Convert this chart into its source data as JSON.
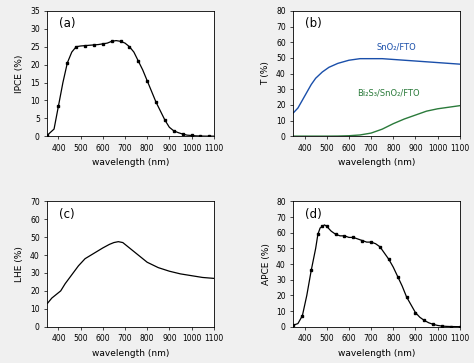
{
  "fig_width": 4.74,
  "fig_height": 3.63,
  "dpi": 100,
  "background_color": "#f0f0f0",
  "panel_a": {
    "label": "(a)",
    "xlabel": "wavelength (nm)",
    "ylabel": "IPCE (%)",
    "xlim": [
      350,
      1100
    ],
    "ylim": [
      0,
      35
    ],
    "yticks": [
      0,
      5,
      10,
      15,
      20,
      25,
      30,
      35
    ],
    "xticks": [
      400,
      500,
      600,
      700,
      800,
      900,
      1000,
      1100
    ],
    "color": "#000000",
    "x": [
      350,
      380,
      400,
      420,
      440,
      460,
      480,
      500,
      520,
      540,
      560,
      580,
      600,
      620,
      640,
      660,
      680,
      700,
      720,
      740,
      760,
      780,
      800,
      820,
      840,
      860,
      880,
      900,
      920,
      940,
      960,
      980,
      1000,
      1020,
      1040,
      1060,
      1080,
      1100
    ],
    "y": [
      0.3,
      2.0,
      8.5,
      15.0,
      20.5,
      23.5,
      25.0,
      25.2,
      25.3,
      25.4,
      25.5,
      25.6,
      25.8,
      26.0,
      26.5,
      26.7,
      26.5,
      26.0,
      25.0,
      23.5,
      21.0,
      18.5,
      15.5,
      12.5,
      9.5,
      7.0,
      4.5,
      2.5,
      1.5,
      1.0,
      0.6,
      0.3,
      0.2,
      0.1,
      0.05,
      0.02,
      0.01,
      0.01
    ]
  },
  "panel_b": {
    "label": "(b)",
    "xlabel": "wavelength (nm)",
    "ylabel": "T (%)",
    "xlim": [
      350,
      1100
    ],
    "ylim": [
      0,
      80
    ],
    "yticks": [
      0,
      10,
      20,
      30,
      40,
      50,
      60,
      70,
      80
    ],
    "xticks": [
      400,
      500,
      600,
      700,
      800,
      900,
      1000,
      1100
    ],
    "sno2_label": "SnO₂/FTO",
    "bis3_label": "Bi₂S₃/SnO₂/FTO",
    "sno2_color": "#1a4faa",
    "bis3_color": "#2a7a3a",
    "sno2_x": [
      350,
      370,
      390,
      410,
      430,
      450,
      480,
      510,
      550,
      600,
      650,
      700,
      750,
      800,
      850,
      900,
      950,
      1000,
      1050,
      1100
    ],
    "sno2_y": [
      15,
      18,
      23,
      28,
      33,
      37,
      41,
      44,
      46.5,
      48.5,
      49.5,
      49.5,
      49.5,
      49,
      48.5,
      48,
      47.5,
      47,
      46.5,
      46
    ],
    "bis3_x": [
      350,
      400,
      450,
      500,
      550,
      600,
      650,
      700,
      750,
      800,
      850,
      900,
      950,
      1000,
      1050,
      1100
    ],
    "bis3_y": [
      0.05,
      0.05,
      0.05,
      0.05,
      0.1,
      0.3,
      0.8,
      2.0,
      4.5,
      8.0,
      11.0,
      13.5,
      16.0,
      17.5,
      18.5,
      19.5
    ]
  },
  "panel_c": {
    "label": "(c)",
    "xlabel": "wavelength (nm)",
    "ylabel": "LHE (%)",
    "xlim": [
      350,
      1100
    ],
    "ylim": [
      0,
      70
    ],
    "yticks": [
      0,
      10,
      20,
      30,
      40,
      50,
      60,
      70
    ],
    "xticks": [
      400,
      500,
      600,
      700,
      800,
      900,
      1000,
      1100
    ],
    "color": "#000000",
    "x": [
      350,
      370,
      390,
      410,
      430,
      460,
      490,
      520,
      560,
      600,
      630,
      650,
      670,
      690,
      720,
      760,
      800,
      850,
      900,
      950,
      1000,
      1050,
      1100
    ],
    "y": [
      13,
      16,
      18,
      20,
      24,
      29,
      34,
      38,
      41,
      44,
      46,
      47,
      47.5,
      47,
      44,
      40,
      36,
      33,
      31,
      29.5,
      28.5,
      27.5,
      27
    ]
  },
  "panel_d": {
    "label": "(d)",
    "xlabel": "wavelength (nm)",
    "ylabel": "APCE (%)",
    "xlim": [
      350,
      1100
    ],
    "ylim": [
      0,
      80
    ],
    "yticks": [
      0,
      10,
      20,
      30,
      40,
      50,
      60,
      70,
      80
    ],
    "xticks": [
      400,
      500,
      600,
      700,
      800,
      900,
      1000,
      1100
    ],
    "color": "#000000",
    "x": [
      350,
      370,
      390,
      410,
      430,
      450,
      460,
      470,
      480,
      490,
      500,
      520,
      540,
      560,
      580,
      600,
      620,
      640,
      660,
      680,
      700,
      720,
      740,
      760,
      780,
      800,
      820,
      840,
      860,
      880,
      900,
      920,
      940,
      960,
      980,
      1000,
      1020,
      1040,
      1060,
      1080,
      1100
    ],
    "y": [
      1,
      2,
      7,
      20,
      36,
      50,
      59,
      63,
      64,
      65,
      64,
      61,
      59,
      58,
      58,
      57,
      57,
      56,
      55,
      54,
      54,
      53,
      51,
      47,
      43,
      38,
      32,
      26,
      19,
      14,
      9,
      6,
      4,
      2.5,
      1.5,
      0.8,
      0.4,
      0.2,
      0.1,
      0.05,
      0.02
    ]
  }
}
